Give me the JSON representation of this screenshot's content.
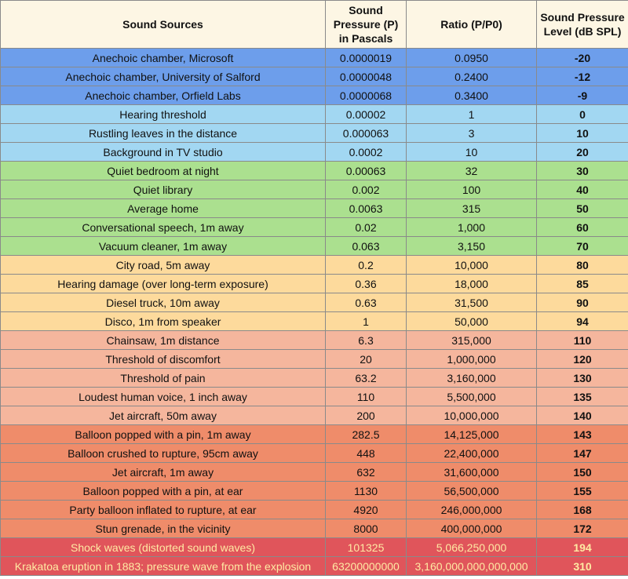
{
  "table": {
    "header": [
      "Sound Sources",
      "Sound Pressure (P) in Pascals",
      "Ratio (P/P0)",
      "Sound Pressure Level (dB SPL)"
    ],
    "rows": [
      {
        "cells": [
          "Anechoic chamber, Microsoft",
          "0.0000019",
          "0.0950",
          "-20"
        ],
        "color": "#6d9eeb"
      },
      {
        "cells": [
          "Anechoic chamber, University of Salford",
          "0.0000048",
          "0.2400",
          "-12"
        ],
        "color": "#6d9eeb"
      },
      {
        "cells": [
          "Anechoic chamber, Orfield Labs",
          "0.0000068",
          "0.3400",
          "-9"
        ],
        "color": "#6d9eeb"
      },
      {
        "cells": [
          "Hearing threshold",
          "0.00002",
          "1",
          "0"
        ],
        "color": "#a2d7f2"
      },
      {
        "cells": [
          "Rustling leaves in the distance",
          "0.000063",
          "3",
          "10"
        ],
        "color": "#a2d7f2"
      },
      {
        "cells": [
          "Background in TV studio",
          "0.0002",
          "10",
          "20"
        ],
        "color": "#a2d7f2"
      },
      {
        "cells": [
          "Quiet bedroom at night",
          "0.00063",
          "32",
          "30"
        ],
        "color": "#abe08f"
      },
      {
        "cells": [
          "Quiet library",
          "0.002",
          "100",
          "40"
        ],
        "color": "#abe08f"
      },
      {
        "cells": [
          "Average home",
          "0.0063",
          "315",
          "50"
        ],
        "color": "#abe08f"
      },
      {
        "cells": [
          "Conversational speech, 1m away",
          "0.02",
          "1,000",
          "60"
        ],
        "color": "#abe08f"
      },
      {
        "cells": [
          "Vacuum cleaner, 1m away",
          "0.063",
          "3,150",
          "70"
        ],
        "color": "#abe08f"
      },
      {
        "cells": [
          "City road, 5m away",
          "0.2",
          "10,000",
          "80"
        ],
        "color": "#fdda9c"
      },
      {
        "cells": [
          "Hearing damage (over long-term exposure)",
          "0.36",
          "18,000",
          "85"
        ],
        "color": "#fdda9c"
      },
      {
        "cells": [
          "Diesel truck, 10m away",
          "0.63",
          "31,500",
          "90"
        ],
        "color": "#fdda9c"
      },
      {
        "cells": [
          "Disco, 1m from speaker",
          "1",
          "50,000",
          "94"
        ],
        "color": "#fdda9c"
      },
      {
        "cells": [
          "Chainsaw, 1m distance",
          "6.3",
          "315,000",
          "110"
        ],
        "color": "#f5b69d"
      },
      {
        "cells": [
          "Threshold of discomfort",
          "20",
          "1,000,000",
          "120"
        ],
        "color": "#f5b69d"
      },
      {
        "cells": [
          "Threshold of pain",
          "63.2",
          "3,160,000",
          "130"
        ],
        "color": "#f5b69d"
      },
      {
        "cells": [
          "Loudest human voice, 1 inch away",
          "110",
          "5,500,000",
          "135"
        ],
        "color": "#f5b69d"
      },
      {
        "cells": [
          "Jet aircraft, 50m away",
          "200",
          "10,000,000",
          "140"
        ],
        "color": "#f5b69d"
      },
      {
        "cells": [
          "Balloon popped with a pin, 1m away",
          "282.5",
          "14,125,000",
          "143"
        ],
        "color": "#ef8c6a"
      },
      {
        "cells": [
          "Balloon crushed to rupture, 95cm away",
          "448",
          "22,400,000",
          "147"
        ],
        "color": "#ef8c6a"
      },
      {
        "cells": [
          "Jet aircraft, 1m away",
          "632",
          "31,600,000",
          "150"
        ],
        "color": "#ef8c6a"
      },
      {
        "cells": [
          "Balloon popped with a pin, at ear",
          "1130",
          "56,500,000",
          "155"
        ],
        "color": "#ef8c6a"
      },
      {
        "cells": [
          "Party balloon inflated to rupture, at ear",
          "4920",
          "246,000,000",
          "168"
        ],
        "color": "#ef8c6a"
      },
      {
        "cells": [
          "Stun grenade, in the vicinity",
          "8000",
          "400,000,000",
          "172"
        ],
        "color": "#ef8c6a"
      },
      {
        "cells": [
          "Shock waves (distorted sound waves)",
          "101325",
          "5,066,250,000",
          "194"
        ],
        "color": "#e0555b",
        "text_color": "#ffeaa3"
      },
      {
        "cells": [
          "Krakatoa eruption in 1883; pressure wave from the explosion",
          "63200000000",
          "3,160,000,000,000,000",
          "310"
        ],
        "color": "#e0555b",
        "text_color": "#ffeaa3"
      }
    ]
  }
}
